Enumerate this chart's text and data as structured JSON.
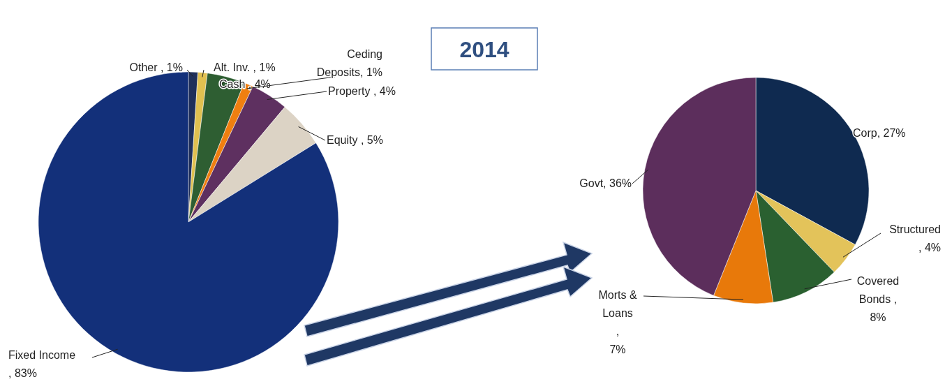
{
  "chart_data": [
    {
      "type": "pie",
      "title": "2014",
      "categories": [
        "Other ",
        "Alt. Inv. ",
        "Cash ",
        "Ceding\nDeposits",
        "Property ",
        "Equity ",
        "Fixed Income"
      ],
      "values": [
        1,
        1,
        4,
        1,
        4,
        5,
        83
      ],
      "value_labels": [
        ", 1%",
        ", 1%",
        ", 4%",
        ", 1%",
        ", 4%",
        ", 5%",
        "\n, 83%"
      ],
      "colors": [
        "#1f2f5a",
        "#e0c050",
        "#2e5e32",
        "#f07f10",
        "#5e3060",
        "#dcd3c5",
        "#13307a"
      ]
    },
    {
      "type": "pie",
      "categories": [
        "Corp",
        "Structured",
        "Covered\nBonds",
        "Morts &\nLoans",
        "Govt"
      ],
      "values": [
        27,
        4,
        8,
        7,
        36
      ],
      "value_labels": [
        ", 27%",
        "\n, 4%",
        " ,\n8%",
        "\n,\n7%",
        ", 36%"
      ],
      "colors": [
        "#0f2a50",
        "#e3c35a",
        "#2a6030",
        "#e8790a",
        "#5c2e5c"
      ]
    }
  ]
}
